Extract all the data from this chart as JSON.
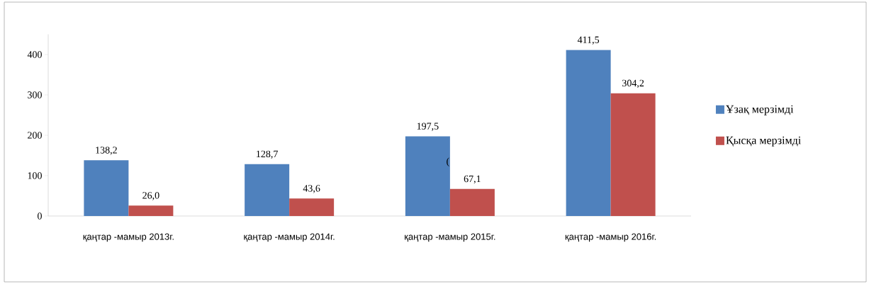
{
  "chart_data": {
    "type": "bar",
    "categories": [
      "қаңтар -мамыр 2013г.",
      "қаңтар -мамыр 2014г.",
      "қаңтар -мамыр 2015г.",
      "қаңтар -мамыр 2016г."
    ],
    "series": [
      {
        "name": "Ұзақ мерзімді",
        "color": "#4f81bd",
        "values": [
          138.2,
          128.7,
          197.5,
          411.5
        ],
        "value_labels": [
          "138,2",
          "128,7",
          "197,5",
          "411,5"
        ]
      },
      {
        "name": "Қысқа мерзімді",
        "color": "#c0504d",
        "values": [
          26.0,
          43.6,
          67.1,
          304.2
        ],
        "value_labels": [
          "26,0",
          "43,6",
          "67,1",
          "304,2"
        ]
      }
    ],
    "ylim": [
      0,
      450
    ],
    "yticks": [
      0,
      100,
      200,
      300,
      400
    ],
    "grid": false,
    "legend": "right",
    "annotations": [
      {
        "text": "(",
        "x": "қаңтар -мамыр 2015г.",
        "y": 67.1
      }
    ]
  }
}
